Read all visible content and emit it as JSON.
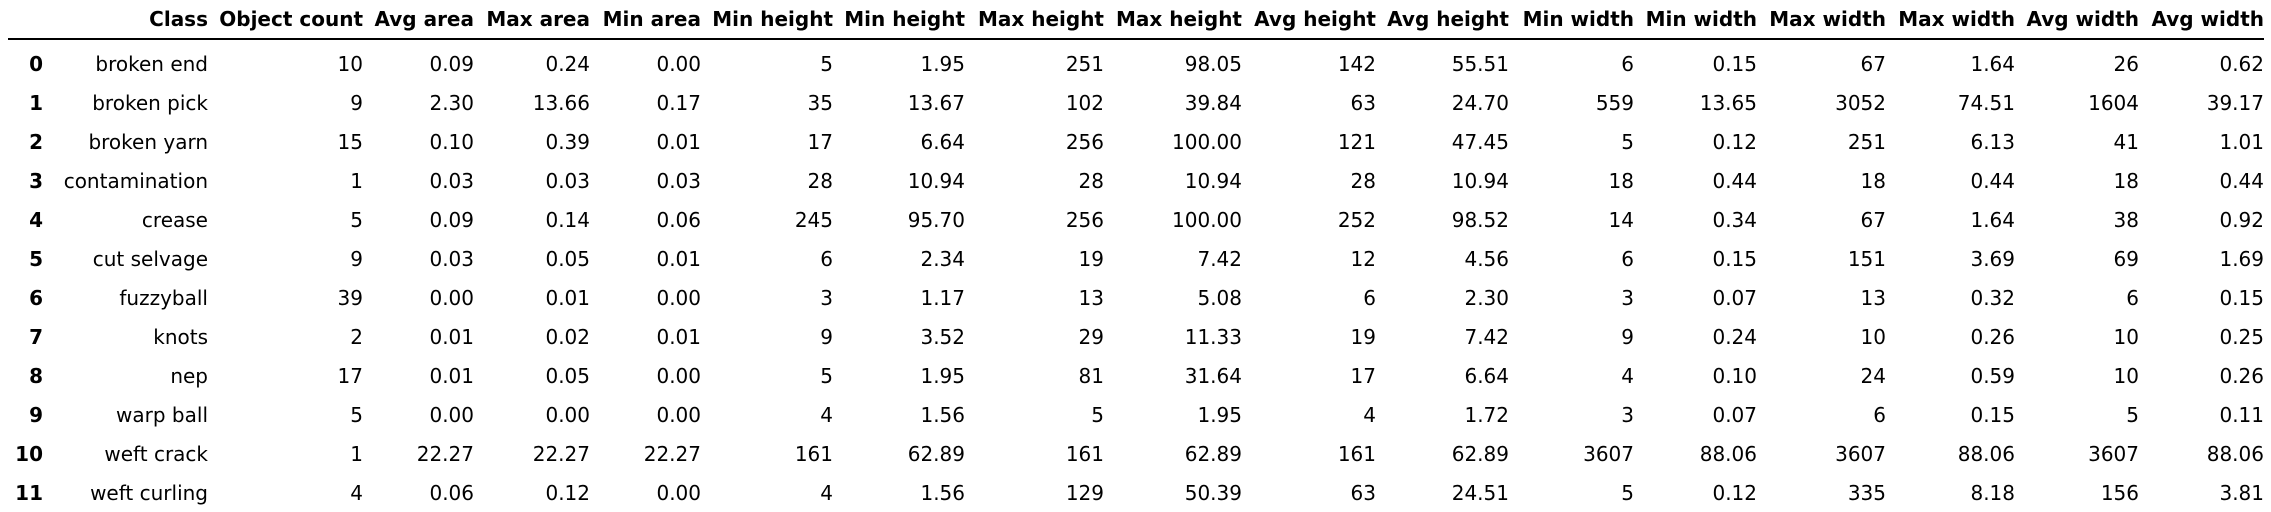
{
  "table": {
    "columns": [
      "",
      "Class",
      "Object count",
      "Avg area",
      "Max area",
      "Min area",
      "Min height",
      "Min height",
      "Max height",
      "Max height",
      "Avg height",
      "Avg height",
      "Min width",
      "Min width",
      "Max width",
      "Max width",
      "Avg width",
      "Avg width"
    ],
    "rows": [
      [
        "0",
        "broken end",
        "10",
        "0.09",
        "0.24",
        "0.00",
        "5",
        "1.95",
        "251",
        "98.05",
        "142",
        "55.51",
        "6",
        "0.15",
        "67",
        "1.64",
        "26",
        "0.62"
      ],
      [
        "1",
        "broken pick",
        "9",
        "2.30",
        "13.66",
        "0.17",
        "35",
        "13.67",
        "102",
        "39.84",
        "63",
        "24.70",
        "559",
        "13.65",
        "3052",
        "74.51",
        "1604",
        "39.17"
      ],
      [
        "2",
        "broken yarn",
        "15",
        "0.10",
        "0.39",
        "0.01",
        "17",
        "6.64",
        "256",
        "100.00",
        "121",
        "47.45",
        "5",
        "0.12",
        "251",
        "6.13",
        "41",
        "1.01"
      ],
      [
        "3",
        "contamination",
        "1",
        "0.03",
        "0.03",
        "0.03",
        "28",
        "10.94",
        "28",
        "10.94",
        "28",
        "10.94",
        "18",
        "0.44",
        "18",
        "0.44",
        "18",
        "0.44"
      ],
      [
        "4",
        "crease",
        "5",
        "0.09",
        "0.14",
        "0.06",
        "245",
        "95.70",
        "256",
        "100.00",
        "252",
        "98.52",
        "14",
        "0.34",
        "67",
        "1.64",
        "38",
        "0.92"
      ],
      [
        "5",
        "cut selvage",
        "9",
        "0.03",
        "0.05",
        "0.01",
        "6",
        "2.34",
        "19",
        "7.42",
        "12",
        "4.56",
        "6",
        "0.15",
        "151",
        "3.69",
        "69",
        "1.69"
      ],
      [
        "6",
        "fuzzyball",
        "39",
        "0.00",
        "0.01",
        "0.00",
        "3",
        "1.17",
        "13",
        "5.08",
        "6",
        "2.30",
        "3",
        "0.07",
        "13",
        "0.32",
        "6",
        "0.15"
      ],
      [
        "7",
        "knots",
        "2",
        "0.01",
        "0.02",
        "0.01",
        "9",
        "3.52",
        "29",
        "11.33",
        "19",
        "7.42",
        "9",
        "0.24",
        "10",
        "0.26",
        "10",
        "0.25"
      ],
      [
        "8",
        "nep",
        "17",
        "0.01",
        "0.05",
        "0.00",
        "5",
        "1.95",
        "81",
        "31.64",
        "17",
        "6.64",
        "4",
        "0.10",
        "24",
        "0.59",
        "10",
        "0.26"
      ],
      [
        "9",
        "warp ball",
        "5",
        "0.00",
        "0.00",
        "0.00",
        "4",
        "1.56",
        "5",
        "1.95",
        "4",
        "1.72",
        "3",
        "0.07",
        "6",
        "0.15",
        "5",
        "0.11"
      ],
      [
        "10",
        "weft crack",
        "1",
        "22.27",
        "22.27",
        "22.27",
        "161",
        "62.89",
        "161",
        "62.89",
        "161",
        "62.89",
        "3607",
        "88.06",
        "3607",
        "88.06",
        "3607",
        "88.06"
      ],
      [
        "11",
        "weft curling",
        "4",
        "0.06",
        "0.12",
        "0.00",
        "4",
        "1.56",
        "129",
        "50.39",
        "63",
        "24.51",
        "5",
        "0.12",
        "335",
        "8.18",
        "156",
        "3.81"
      ]
    ]
  }
}
